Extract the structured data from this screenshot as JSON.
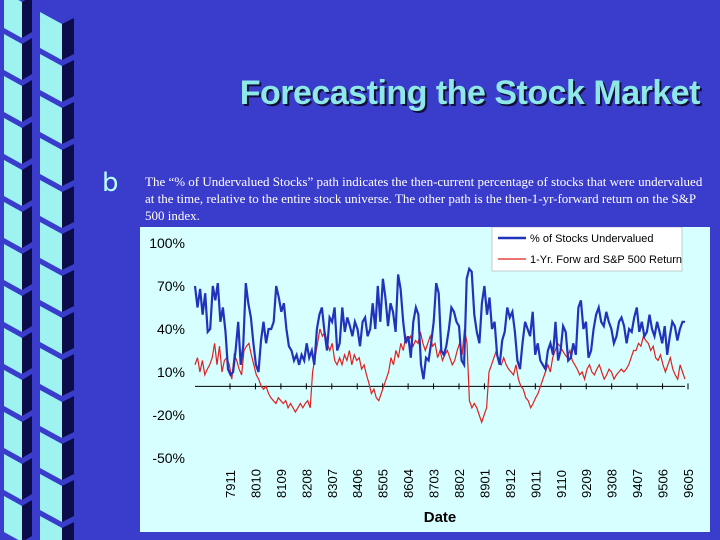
{
  "slide": {
    "title": "Forecasting the Stock Market",
    "bullet_icon": "bullet-b-icon",
    "text": "The “% of Undervalued Stocks” path indicates the then-current percentage of stocks that were undervalued at the time, relative to the entire stock universe. The other path is the then-1-yr-forward return on the S&P 500 index."
  },
  "colors": {
    "background": "#3a3ccc",
    "stripe_light": "#9ef3f0",
    "stripe_dark": "#0c0c4a",
    "chart_bg": "#d8ffff",
    "series_undervalued": "#2233bb",
    "series_sp500": "#dd2222"
  },
  "chart_data": {
    "type": "line",
    "xlabel": "Date",
    "ylabel": "",
    "ylim": [
      -50,
      100
    ],
    "yticks": [
      "100%",
      "70%",
      "40%",
      "10%",
      "-20%",
      "-50%"
    ],
    "x_tick_labels": [
      "7911",
      "8010",
      "8109",
      "8208",
      "8307",
      "8406",
      "8505",
      "8604",
      "8703",
      "8802",
      "8901",
      "8912",
      "9011",
      "9110",
      "9209",
      "9308",
      "9407",
      "9506",
      "9605"
    ],
    "grid": false,
    "legend_position": "top-right",
    "series": [
      {
        "name": "% of Stocks Undervalued",
        "values": [
          70,
          55,
          68,
          50,
          65,
          38,
          40,
          70,
          60,
          72,
          45,
          55,
          38,
          12,
          8,
          10,
          25,
          45,
          15,
          28,
          72,
          58,
          48,
          30,
          15,
          10,
          32,
          45,
          30,
          40,
          40,
          45,
          70,
          62,
          52,
          58,
          40,
          28,
          25,
          18,
          22,
          15,
          22,
          18,
          30,
          20,
          25,
          15,
          40,
          50,
          55,
          38,
          25,
          48,
          45,
          55,
          25,
          30,
          55,
          38,
          48,
          42,
          35,
          45,
          40,
          28,
          45,
          48,
          35,
          40,
          58,
          40,
          70,
          45,
          75,
          62,
          42,
          58,
          52,
          38,
          78,
          68,
          45,
          30,
          35,
          20,
          45,
          55,
          50,
          15,
          5,
          20,
          18,
          30,
          45,
          72,
          65,
          25,
          22,
          28,
          40,
          55,
          52,
          45,
          42,
          18,
          15,
          75,
          82,
          80,
          50,
          38,
          30,
          58,
          70,
          50,
          62,
          40,
          45,
          22,
          15,
          32,
          38,
          55,
          48,
          52,
          38,
          18,
          12,
          30,
          45,
          40,
          35,
          52,
          22,
          30,
          18,
          15,
          12,
          25,
          30,
          22,
          45,
          18,
          25,
          42,
          38,
          18,
          20,
          30,
          22,
          55,
          60,
          40,
          45,
          20,
          25,
          40,
          50,
          55,
          45,
          42,
          52,
          45,
          40,
          30,
          35,
          45,
          48,
          42,
          30,
          40,
          38,
          48,
          55,
          38,
          45,
          35,
          38,
          50,
          40,
          35,
          45,
          38,
          30,
          42,
          22,
          35,
          45,
          42,
          32,
          40,
          45,
          45
        ]
      },
      {
        "name": "1-Yr. Forw ard S&P 500 Return",
        "values": [
          15,
          20,
          10,
          18,
          8,
          12,
          15,
          20,
          30,
          15,
          28,
          10,
          18,
          20,
          15,
          5,
          22,
          18,
          12,
          8,
          25,
          28,
          30,
          22,
          15,
          8,
          5,
          0,
          -2,
          0,
          -5,
          -8,
          -10,
          -12,
          -8,
          -10,
          -12,
          -10,
          -15,
          -12,
          -15,
          -18,
          -15,
          -12,
          -15,
          -12,
          -10,
          -15,
          10,
          20,
          30,
          40,
          35,
          38,
          30,
          25,
          30,
          18,
          15,
          20,
          15,
          22,
          18,
          25,
          15,
          22,
          18,
          20,
          12,
          15,
          8,
          2,
          -5,
          -2,
          -8,
          -10,
          -5,
          0,
          5,
          10,
          20,
          15,
          25,
          20,
          30,
          25,
          35,
          32,
          35,
          28,
          32,
          30,
          38,
          30,
          25,
          30,
          35,
          28,
          30,
          20,
          25,
          18,
          22,
          25,
          20,
          15,
          18,
          25,
          30,
          22,
          40,
          30,
          -10,
          -15,
          -12,
          -15,
          -20,
          -25,
          -20,
          -15,
          10,
          15,
          20,
          25,
          18,
          15,
          20,
          15,
          12,
          10,
          8,
          15,
          5,
          0,
          -2,
          -8,
          -10,
          -15,
          -12,
          -8,
          -5,
          0,
          5,
          10,
          15,
          10,
          20,
          25,
          30,
          28,
          25,
          22,
          20,
          25,
          18,
          15,
          12,
          8,
          10,
          5,
          12,
          15,
          10,
          8,
          12,
          15,
          10,
          5,
          8,
          12,
          10,
          5,
          8,
          10,
          12,
          10,
          12,
          15,
          20,
          25,
          25,
          30,
          28,
          35,
          32,
          30,
          25,
          28,
          20,
          18,
          22,
          15,
          10,
          15,
          20,
          12,
          8,
          5,
          15,
          10,
          5
        ]
      }
    ]
  }
}
